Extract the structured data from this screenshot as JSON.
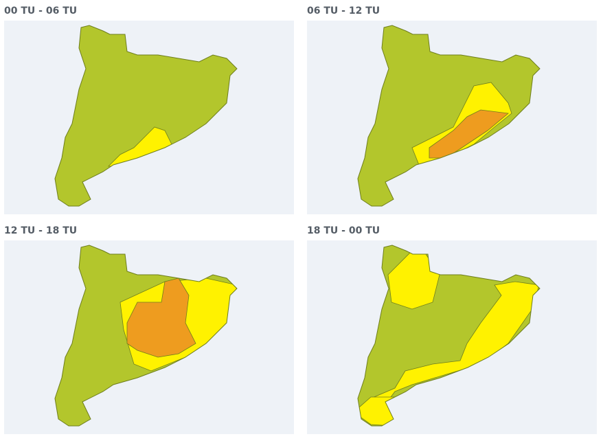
{
  "colors": {
    "background": "#eef2f7",
    "green": "#b3c62c",
    "yellow": "#fff200",
    "orange": "#ee9c1f",
    "outline": "#6d7d1c"
  },
  "panels": [
    {
      "title": "00 TU - 06 TU",
      "levels": [
        "green",
        "yellow"
      ]
    },
    {
      "title": "06 TU - 12 TU",
      "levels": [
        "green",
        "yellow",
        "orange"
      ]
    },
    {
      "title": "12 TU - 18 TU",
      "levels": [
        "green",
        "yellow",
        "orange"
      ]
    },
    {
      "title": "18 TU - 00 TU",
      "levels": [
        "green",
        "yellow"
      ]
    }
  ]
}
